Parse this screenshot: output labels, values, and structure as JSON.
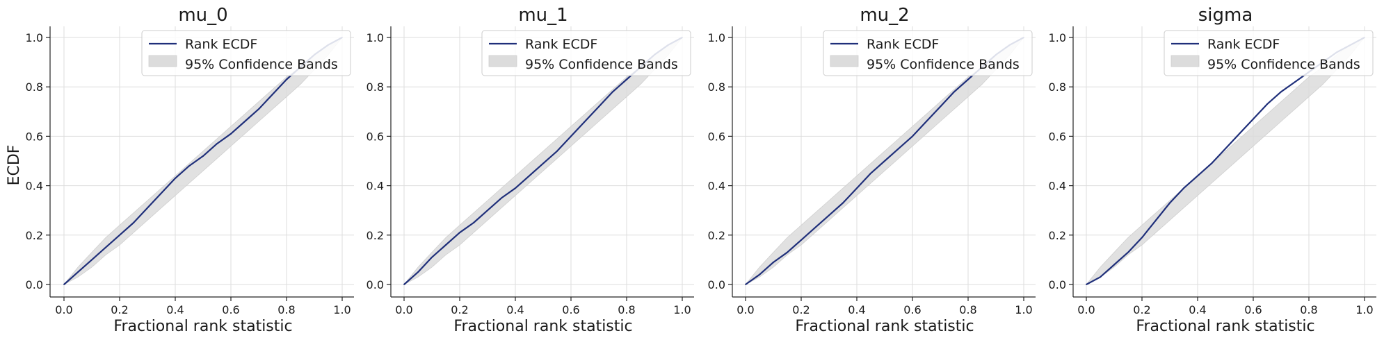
{
  "figure": {
    "shared_ylabel": "ECDF"
  },
  "chart_data": [
    {
      "type": "line",
      "title": "mu_0",
      "xlabel": "Fractional rank statistic",
      "ylabel": "ECDF",
      "xlim": [
        0.0,
        1.0
      ],
      "ylim": [
        0.0,
        1.0
      ],
      "xticks": [
        "0.0",
        "0.2",
        "0.4",
        "0.6",
        "0.8",
        "1.0"
      ],
      "yticks": [
        "0.0",
        "0.2",
        "0.4",
        "0.6",
        "0.8",
        "1.0"
      ],
      "grid": true,
      "legend": {
        "placement": "top-right",
        "entries": [
          "Rank ECDF",
          "95% Confidence Bands"
        ]
      },
      "series": [
        {
          "name": "Rank ECDF",
          "color": "#1f2f7a",
          "x": [
            0.0,
            0.05,
            0.1,
            0.15,
            0.2,
            0.25,
            0.3,
            0.35,
            0.4,
            0.45,
            0.5,
            0.55,
            0.6,
            0.65,
            0.7,
            0.75,
            0.8,
            0.85,
            0.9,
            0.95,
            1.0
          ],
          "y": [
            0.0,
            0.05,
            0.1,
            0.15,
            0.2,
            0.25,
            0.31,
            0.37,
            0.43,
            0.48,
            0.52,
            0.57,
            0.61,
            0.66,
            0.71,
            0.77,
            0.83,
            0.88,
            0.93,
            0.97,
            1.0
          ]
        }
      ],
      "band": {
        "name": "95% Confidence Bands",
        "color": "#dcdcdc",
        "x": [
          0.0,
          0.05,
          0.1,
          0.15,
          0.2,
          0.25,
          0.3,
          0.35,
          0.4,
          0.45,
          0.5,
          0.55,
          0.6,
          0.65,
          0.7,
          0.75,
          0.8,
          0.85,
          0.9,
          0.95,
          1.0
        ],
        "lower": [
          0.0,
          0.03,
          0.07,
          0.12,
          0.16,
          0.21,
          0.26,
          0.31,
          0.36,
          0.41,
          0.46,
          0.51,
          0.56,
          0.61,
          0.66,
          0.71,
          0.76,
          0.81,
          0.87,
          0.93,
          1.0
        ],
        "upper": [
          0.0,
          0.07,
          0.13,
          0.19,
          0.24,
          0.29,
          0.34,
          0.39,
          0.44,
          0.49,
          0.54,
          0.59,
          0.64,
          0.69,
          0.74,
          0.79,
          0.84,
          0.88,
          0.93,
          0.97,
          1.0
        ]
      }
    },
    {
      "type": "line",
      "title": "mu_1",
      "xlabel": "Fractional rank statistic",
      "ylabel": "",
      "xlim": [
        0.0,
        1.0
      ],
      "ylim": [
        0.0,
        1.0
      ],
      "xticks": [
        "0.0",
        "0.2",
        "0.4",
        "0.6",
        "0.8",
        "1.0"
      ],
      "yticks": [
        "0.0",
        "0.2",
        "0.4",
        "0.6",
        "0.8",
        "1.0"
      ],
      "grid": true,
      "legend": {
        "placement": "top-right",
        "entries": [
          "Rank ECDF",
          "95% Confidence Bands"
        ]
      },
      "series": [
        {
          "name": "Rank ECDF",
          "color": "#1f2f7a",
          "x": [
            0.0,
            0.05,
            0.1,
            0.15,
            0.2,
            0.25,
            0.3,
            0.35,
            0.4,
            0.45,
            0.5,
            0.55,
            0.6,
            0.65,
            0.7,
            0.75,
            0.8,
            0.85,
            0.9,
            0.95,
            1.0
          ],
          "y": [
            0.0,
            0.05,
            0.11,
            0.16,
            0.21,
            0.25,
            0.3,
            0.35,
            0.39,
            0.44,
            0.49,
            0.54,
            0.6,
            0.66,
            0.72,
            0.78,
            0.83,
            0.88,
            0.93,
            0.97,
            1.0
          ]
        }
      ],
      "band": {
        "name": "95% Confidence Bands",
        "color": "#dcdcdc",
        "x": [
          0.0,
          0.05,
          0.1,
          0.15,
          0.2,
          0.25,
          0.3,
          0.35,
          0.4,
          0.45,
          0.5,
          0.55,
          0.6,
          0.65,
          0.7,
          0.75,
          0.8,
          0.85,
          0.9,
          0.95,
          1.0
        ],
        "lower": [
          0.0,
          0.03,
          0.07,
          0.12,
          0.16,
          0.21,
          0.26,
          0.31,
          0.36,
          0.41,
          0.46,
          0.51,
          0.56,
          0.61,
          0.66,
          0.71,
          0.76,
          0.81,
          0.87,
          0.93,
          1.0
        ],
        "upper": [
          0.0,
          0.07,
          0.13,
          0.19,
          0.24,
          0.29,
          0.34,
          0.39,
          0.44,
          0.49,
          0.54,
          0.59,
          0.64,
          0.69,
          0.74,
          0.79,
          0.84,
          0.88,
          0.93,
          0.97,
          1.0
        ]
      }
    },
    {
      "type": "line",
      "title": "mu_2",
      "xlabel": "Fractional rank statistic",
      "ylabel": "",
      "xlim": [
        0.0,
        1.0
      ],
      "ylim": [
        0.0,
        1.0
      ],
      "xticks": [
        "0.0",
        "0.2",
        "0.4",
        "0.6",
        "0.8",
        "1.0"
      ],
      "yticks": [
        "0.0",
        "0.2",
        "0.4",
        "0.6",
        "0.8",
        "1.0"
      ],
      "grid": true,
      "legend": {
        "placement": "top-right",
        "entries": [
          "Rank ECDF",
          "95% Confidence Bands"
        ]
      },
      "series": [
        {
          "name": "Rank ECDF",
          "color": "#1f2f7a",
          "x": [
            0.0,
            0.05,
            0.1,
            0.15,
            0.2,
            0.25,
            0.3,
            0.35,
            0.4,
            0.45,
            0.5,
            0.55,
            0.6,
            0.65,
            0.7,
            0.75,
            0.8,
            0.85,
            0.9,
            0.95,
            1.0
          ],
          "y": [
            0.0,
            0.04,
            0.09,
            0.13,
            0.18,
            0.23,
            0.28,
            0.33,
            0.39,
            0.45,
            0.5,
            0.55,
            0.6,
            0.66,
            0.72,
            0.78,
            0.83,
            0.88,
            0.93,
            0.97,
            1.0
          ]
        }
      ],
      "band": {
        "name": "95% Confidence Bands",
        "color": "#dcdcdc",
        "x": [
          0.0,
          0.05,
          0.1,
          0.15,
          0.2,
          0.25,
          0.3,
          0.35,
          0.4,
          0.45,
          0.5,
          0.55,
          0.6,
          0.65,
          0.7,
          0.75,
          0.8,
          0.85,
          0.9,
          0.95,
          1.0
        ],
        "lower": [
          0.0,
          0.03,
          0.07,
          0.12,
          0.16,
          0.21,
          0.26,
          0.31,
          0.36,
          0.41,
          0.46,
          0.51,
          0.56,
          0.61,
          0.66,
          0.71,
          0.76,
          0.81,
          0.87,
          0.93,
          1.0
        ],
        "upper": [
          0.0,
          0.07,
          0.13,
          0.19,
          0.24,
          0.29,
          0.34,
          0.39,
          0.44,
          0.49,
          0.54,
          0.59,
          0.64,
          0.69,
          0.74,
          0.79,
          0.84,
          0.88,
          0.93,
          0.97,
          1.0
        ]
      }
    },
    {
      "type": "line",
      "title": "sigma",
      "xlabel": "Fractional rank statistic",
      "ylabel": "",
      "xlim": [
        0.0,
        1.0
      ],
      "ylim": [
        0.0,
        1.0
      ],
      "xticks": [
        "0.0",
        "0.2",
        "0.4",
        "0.6",
        "0.8",
        "1.0"
      ],
      "yticks": [
        "0.0",
        "0.2",
        "0.4",
        "0.6",
        "0.8",
        "1.0"
      ],
      "grid": true,
      "legend": {
        "placement": "top-right",
        "entries": [
          "Rank ECDF",
          "95% Confidence Bands"
        ]
      },
      "series": [
        {
          "name": "Rank ECDF",
          "color": "#1f2f7a",
          "x": [
            0.0,
            0.05,
            0.1,
            0.15,
            0.2,
            0.25,
            0.3,
            0.35,
            0.4,
            0.45,
            0.5,
            0.55,
            0.6,
            0.65,
            0.7,
            0.75,
            0.8,
            0.85,
            0.9,
            0.95,
            1.0
          ],
          "y": [
            0.0,
            0.03,
            0.08,
            0.13,
            0.19,
            0.26,
            0.33,
            0.39,
            0.44,
            0.49,
            0.55,
            0.61,
            0.67,
            0.73,
            0.78,
            0.82,
            0.86,
            0.9,
            0.94,
            0.97,
            1.0
          ]
        }
      ],
      "band": {
        "name": "95% Confidence Bands",
        "color": "#dcdcdc",
        "x": [
          0.0,
          0.05,
          0.1,
          0.15,
          0.2,
          0.25,
          0.3,
          0.35,
          0.4,
          0.45,
          0.5,
          0.55,
          0.6,
          0.65,
          0.7,
          0.75,
          0.8,
          0.85,
          0.9,
          0.95,
          1.0
        ],
        "lower": [
          0.0,
          0.03,
          0.07,
          0.12,
          0.16,
          0.21,
          0.26,
          0.31,
          0.36,
          0.41,
          0.46,
          0.51,
          0.56,
          0.61,
          0.66,
          0.71,
          0.76,
          0.81,
          0.87,
          0.93,
          1.0
        ],
        "upper": [
          0.0,
          0.07,
          0.13,
          0.19,
          0.24,
          0.29,
          0.34,
          0.39,
          0.44,
          0.49,
          0.54,
          0.59,
          0.64,
          0.69,
          0.74,
          0.79,
          0.84,
          0.88,
          0.93,
          0.97,
          1.0
        ]
      }
    }
  ]
}
